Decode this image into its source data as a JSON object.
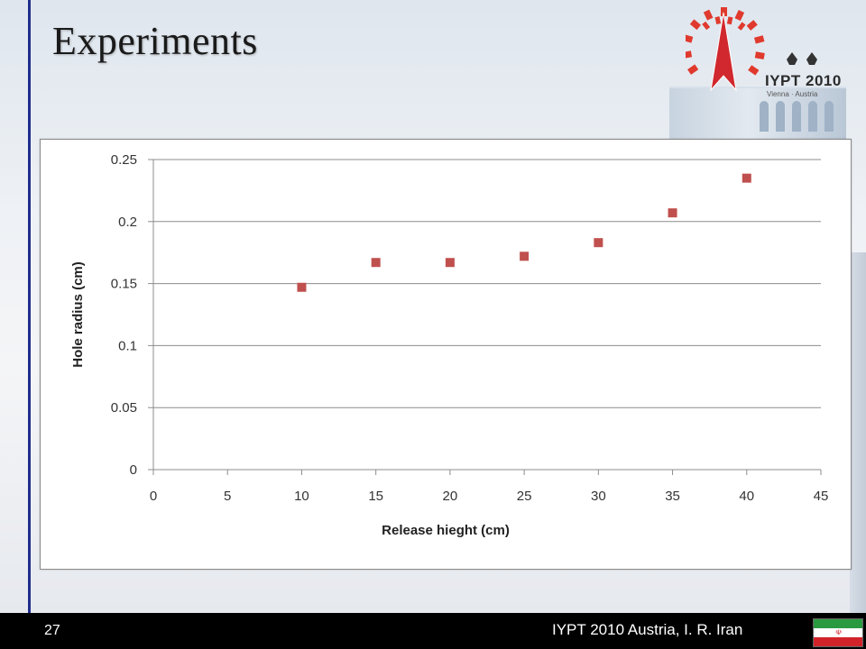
{
  "slide": {
    "title": "Experiments",
    "page_number": "27",
    "footer_text": "IYPT 2010 Austria, I. R. Iran"
  },
  "logo": {
    "name": "IYPT 2010",
    "subtitle": "Vienna · Austria"
  },
  "colors": {
    "accent_bar": "#1f2e8c",
    "marker": "#c0504d",
    "footer_bg": "#000000"
  },
  "flag_icon": "iran-flag-icon",
  "chart_data": {
    "type": "scatter",
    "title": "",
    "xlabel": "Release hieght (cm)",
    "ylabel": "Hole radius (cm)",
    "xlim": [
      0,
      45
    ],
    "ylim": [
      0,
      0.25
    ],
    "x_ticks": [
      "0",
      "5",
      "10",
      "15",
      "20",
      "25",
      "30",
      "35",
      "40",
      "45"
    ],
    "y_ticks": [
      "0",
      "0.05",
      "0.1",
      "0.15",
      "0.2",
      "0.25"
    ],
    "grid": "horizontal",
    "legend": "none",
    "series": [
      {
        "marker": "square",
        "color": "#c0504d",
        "points": [
          {
            "x": 10,
            "y": 0.147
          },
          {
            "x": 15,
            "y": 0.167
          },
          {
            "x": 20,
            "y": 0.167
          },
          {
            "x": 25,
            "y": 0.172
          },
          {
            "x": 30,
            "y": 0.183
          },
          {
            "x": 35,
            "y": 0.207
          },
          {
            "x": 40,
            "y": 0.235
          }
        ]
      }
    ]
  }
}
